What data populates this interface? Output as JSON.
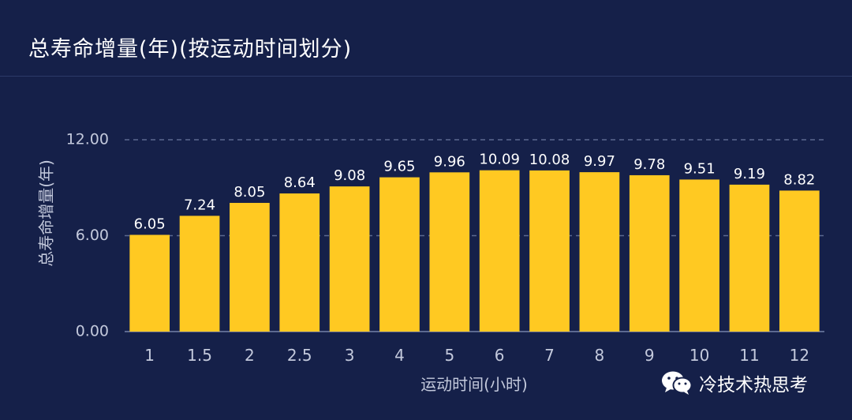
{
  "chart_data": {
    "type": "bar",
    "title": "总寿命增量(年)(按运动时间划分)",
    "xlabel": "运动时间(小时)",
    "ylabel": "总寿命增量(年)",
    "categories": [
      "1",
      "1.5",
      "2",
      "2.5",
      "3",
      "4",
      "5",
      "6",
      "7",
      "8",
      "9",
      "10",
      "11",
      "12"
    ],
    "values": [
      6.05,
      7.24,
      8.05,
      8.64,
      9.08,
      9.65,
      9.96,
      10.09,
      10.08,
      9.97,
      9.78,
      9.51,
      9.19,
      8.82
    ],
    "value_labels": [
      "6.05",
      "7.24",
      "8.05",
      "8.64",
      "9.08",
      "9.65",
      "9.96",
      "10.09",
      "10.08",
      "9.97",
      "9.78",
      "9.51",
      "9.19",
      "8.82"
    ],
    "yticks": [
      0,
      6,
      12
    ],
    "ytick_labels": [
      "0.00",
      "6.00",
      "12.00"
    ],
    "ylim": [
      0,
      12
    ],
    "grid": true,
    "legend": "none"
  },
  "colors": {
    "background": "#152049",
    "bar": "#ffc922",
    "text": "#ffffff",
    "axis_text": "#c3c9dc",
    "grid": "#5c6990"
  },
  "watermark": {
    "icon": "wechat-icon",
    "text": "冷技术热思考"
  }
}
